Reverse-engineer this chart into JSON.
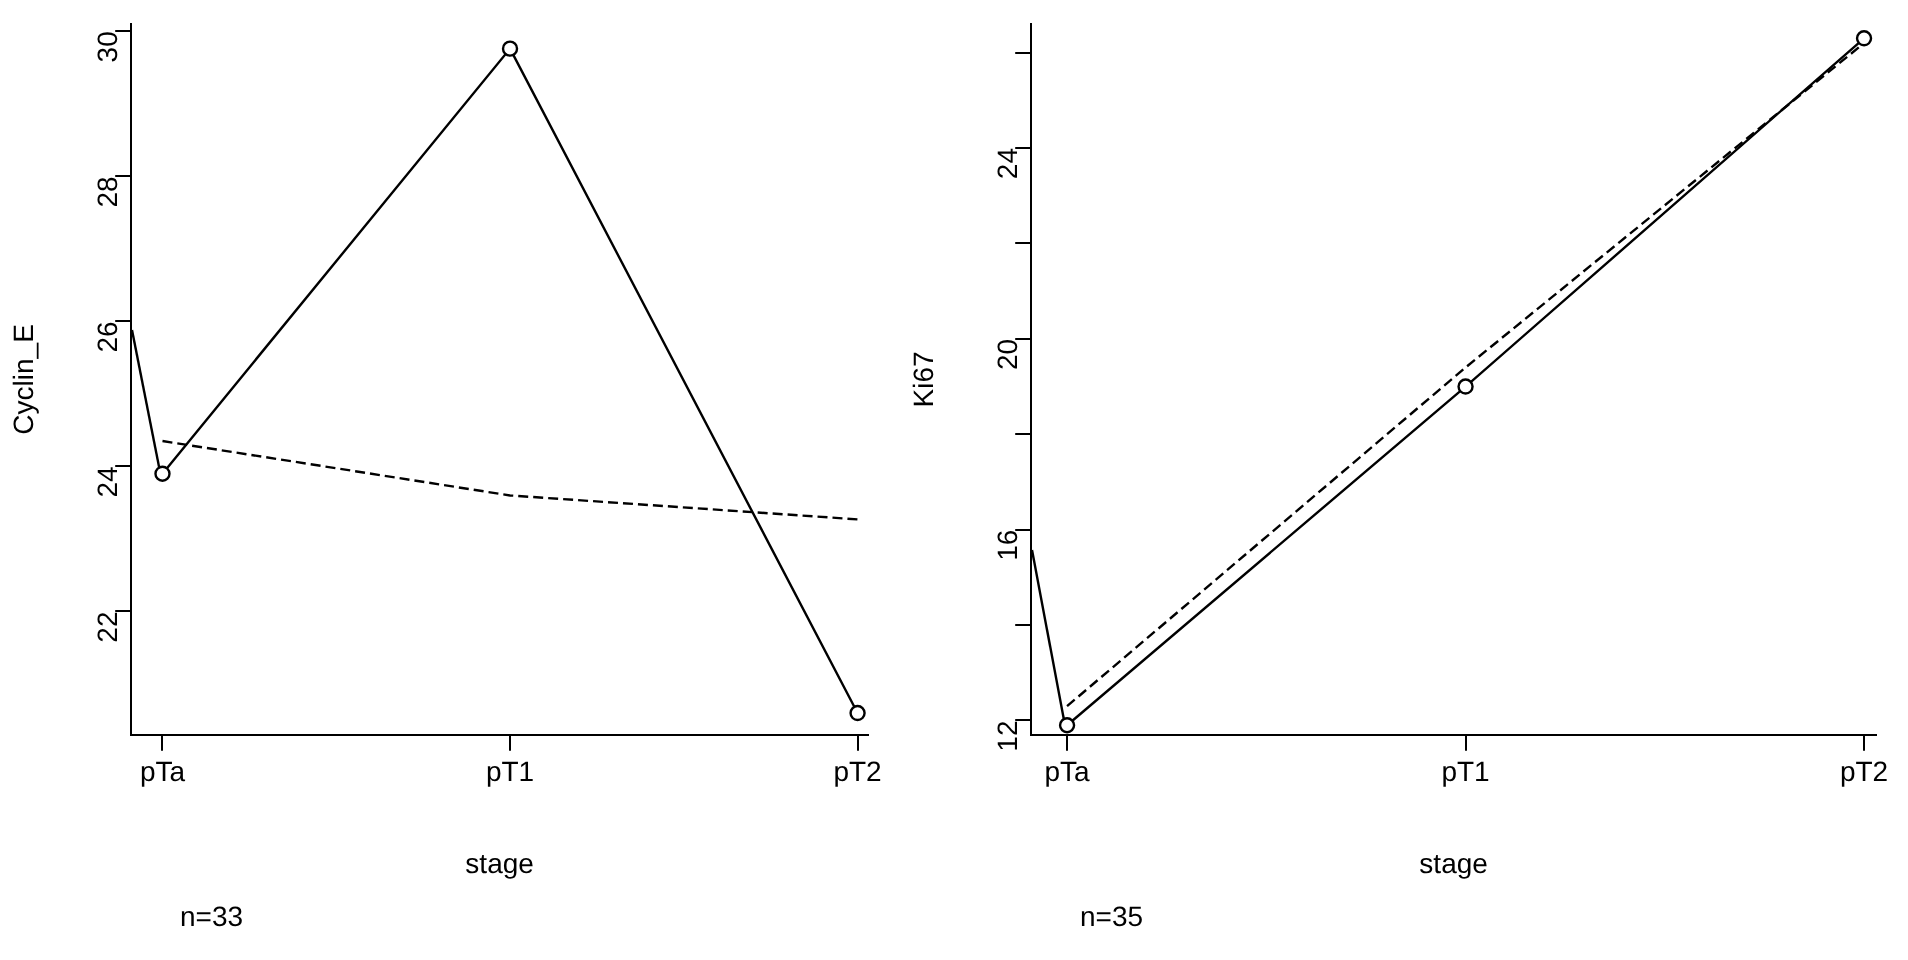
{
  "chart_data": [
    {
      "type": "line",
      "xlabel": "stage",
      "ylabel": "Cyclin_E",
      "annotations": [
        "n=33"
      ],
      "categories": [
        "pTa",
        "pT1",
        "pT2"
      ],
      "ylim": [
        20.3,
        30.1
      ],
      "yticks": [
        22,
        24,
        26,
        28,
        30
      ],
      "grid": false,
      "series": [
        {
          "values": [
            23.9,
            29.76,
            20.6
          ],
          "color": "#000000",
          "marker": "circle",
          "line_style": "solid"
        },
        {
          "values": [
            24.35,
            23.6,
            23.27
          ],
          "color": "#000000",
          "marker": "none",
          "line_style": "dashed"
        }
      ]
    },
    {
      "type": "line",
      "xlabel": "stage",
      "ylabel": "Ki67",
      "annotations": [
        "n=35"
      ],
      "categories": [
        "pTa",
        "pT1",
        "pT2"
      ],
      "ylim": [
        11.7,
        26.6
      ],
      "yticks": [
        12,
        {
          "value": 14,
          "label": null
        },
        16,
        {
          "value": 18,
          "label": null
        },
        20,
        {
          "value": 22,
          "label": null
        },
        24,
        {
          "value": 26,
          "label": null
        }
      ],
      "grid": false,
      "series": [
        {
          "values": [
            11.9,
            19.0,
            26.3
          ],
          "color": "#000000",
          "marker": "circle",
          "line_style": "solid"
        },
        {
          "values": [
            12.3,
            19.4,
            26.2
          ],
          "color": "#000000",
          "marker": "none",
          "line_style": "dashed"
        }
      ]
    }
  ]
}
